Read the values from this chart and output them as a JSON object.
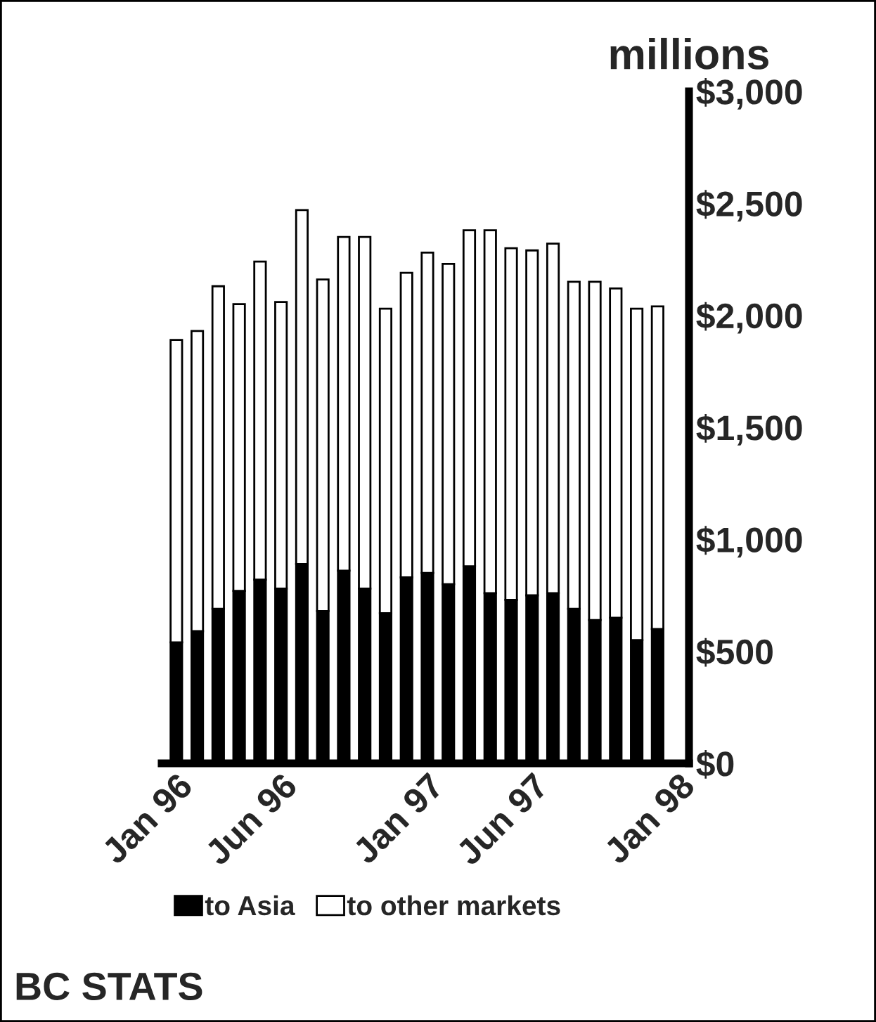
{
  "chart_data": {
    "type": "bar",
    "stacked": true,
    "categories": [
      "Jan 96",
      null,
      null,
      null,
      null,
      "Jun 96",
      null,
      null,
      null,
      null,
      null,
      null,
      "Jan 97",
      null,
      null,
      null,
      null,
      "Jun 97",
      null,
      null,
      null,
      null,
      null,
      null,
      "Jan 98"
    ],
    "series": [
      {
        "name": "to Asia",
        "color": "#000000",
        "values": [
          540,
          590,
          690,
          770,
          820,
          780,
          890,
          680,
          860,
          780,
          670,
          830,
          850,
          800,
          880,
          760,
          730,
          750,
          760,
          690,
          640,
          650,
          550,
          600,
          null
        ]
      },
      {
        "name": "to other markets",
        "color": "#ffffff",
        "values": [
          1350,
          1340,
          1440,
          1280,
          1420,
          1280,
          1580,
          1480,
          1490,
          1570,
          1360,
          1360,
          1430,
          1430,
          1500,
          1620,
          1570,
          1540,
          1560,
          1460,
          1510,
          1470,
          1480,
          1440,
          null
        ]
      }
    ],
    "ylabel": "millions",
    "ylim": [
      0,
      3000
    ],
    "yticks": [
      {
        "value": 0,
        "label": "$0"
      },
      {
        "value": 500,
        "label": "$500"
      },
      {
        "value": 1000,
        "label": "$1,000"
      },
      {
        "value": 1500,
        "label": "$1,500"
      },
      {
        "value": 2000,
        "label": "$2,000"
      },
      {
        "value": 2500,
        "label": "$2,500"
      },
      {
        "value": 3000,
        "label": "$3,000"
      }
    ],
    "grid": false,
    "legend": "bottom",
    "annotations": [
      "BC STATS"
    ]
  }
}
